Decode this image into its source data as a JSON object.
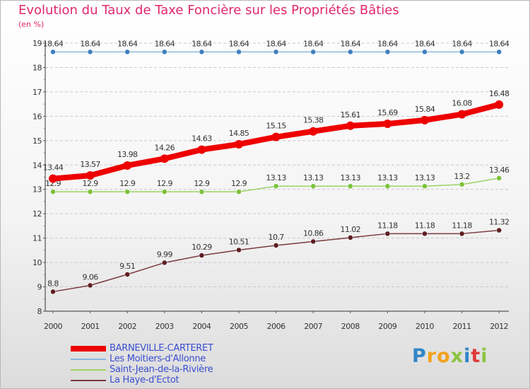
{
  "title": "Evolution du Taux de Taxe Foncière sur les Propriétés Bâties",
  "unit_label": "(en %)",
  "logo": {
    "letters": [
      {
        "char": "P",
        "color": "#2f86c7"
      },
      {
        "char": "r",
        "color": "#f3a21c"
      },
      {
        "char": "o",
        "color": "#f3a21c"
      },
      {
        "char": "x",
        "color": "#8bc43f"
      },
      {
        "char": "i",
        "color": "#2f86c7"
      },
      {
        "char": "t",
        "color": "#e03a3a"
      },
      {
        "char": "i",
        "color": "#8bc43f"
      }
    ]
  },
  "chart_data": {
    "type": "line",
    "title": "Evolution du Taux de Taxe Foncière sur les Propriétés Bâties",
    "ylabel": "(en %)",
    "xlabel": "",
    "x": [
      "2000",
      "2001",
      "2002",
      "2003",
      "2004",
      "2005",
      "2006",
      "2007",
      "2008",
      "2009",
      "2010",
      "2011",
      "2012"
    ],
    "ylim": [
      8,
      19
    ],
    "yticks": [
      "8",
      "9",
      "10",
      "11",
      "12",
      "13",
      "14",
      "15",
      "16",
      "17",
      "18",
      "19"
    ],
    "grid": "horizontal-dashed",
    "legend_position": "bottom-left",
    "series": [
      {
        "name": "BARNEVILLE-CARTERET",
        "color": "#ee0000",
        "marker_color": "#ee0000",
        "emphasis": "bold",
        "values": [
          13.44,
          13.57,
          13.98,
          14.26,
          14.63,
          14.85,
          15.15,
          15.38,
          15.61,
          15.69,
          15.84,
          16.08,
          16.48
        ],
        "labels": [
          "13.44",
          "13.57",
          "13.98",
          "14.26",
          "14.63",
          "14.85",
          "15.15",
          "15.38",
          "15.61",
          "15.69",
          "15.84",
          "16.08",
          "16.48"
        ]
      },
      {
        "name": "Les Moitiers-d'Allonne",
        "color": "#88b8dd",
        "marker_color": "#3f7fc0",
        "emphasis": "normal",
        "values": [
          18.64,
          18.64,
          18.64,
          18.64,
          18.64,
          18.64,
          18.64,
          18.64,
          18.64,
          18.64,
          18.64,
          18.64,
          18.64
        ],
        "labels": [
          "18.64",
          "18.64",
          "18.64",
          "18.64",
          "18.64",
          "18.64",
          "18.64",
          "18.64",
          "18.64",
          "18.64",
          "18.64",
          "18.64",
          "18.64"
        ]
      },
      {
        "name": "Saint-Jean-de-la-Rivière",
        "color": "#9ad463",
        "marker_color": "#7cc23a",
        "emphasis": "normal",
        "values": [
          12.9,
          12.9,
          12.9,
          12.9,
          12.9,
          12.9,
          13.13,
          13.13,
          13.13,
          13.13,
          13.13,
          13.2,
          13.46
        ],
        "labels": [
          "12.9",
          "12.9",
          "12.9",
          "12.9",
          "12.9",
          "12.9",
          "13.13",
          "13.13",
          "13.13",
          "13.13",
          "13.13",
          "13.2",
          "13.46"
        ]
      },
      {
        "name": "La Haye-d'Ectot",
        "color": "#7a3a40",
        "marker_color": "#5e1e22",
        "emphasis": "normal",
        "values": [
          8.8,
          9.06,
          9.51,
          9.99,
          10.29,
          10.51,
          10.7,
          10.86,
          11.02,
          11.18,
          11.18,
          11.18,
          11.32
        ],
        "labels": [
          "8.8",
          "9.06",
          "9.51",
          "9.99",
          "10.29",
          "10.51",
          "10.7",
          "10.86",
          "11.02",
          "11.18",
          "11.18",
          "11.18",
          "11.32"
        ]
      }
    ]
  }
}
